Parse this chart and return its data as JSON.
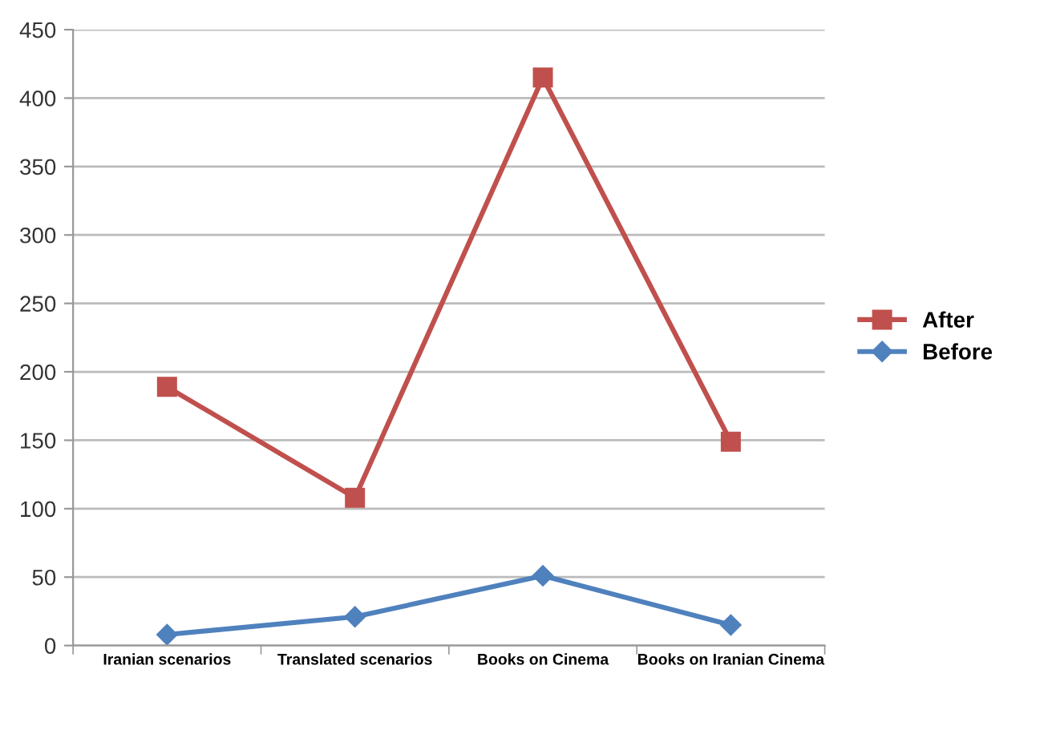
{
  "chart_data": {
    "type": "line",
    "categories": [
      "Iranian scenarios",
      "Translated scenarios",
      "Books on Cinema",
      "Books on Iranian Cinema"
    ],
    "series": [
      {
        "name": "After",
        "color": "#c0504d",
        "marker": "square",
        "values": [
          189,
          108,
          415,
          149
        ]
      },
      {
        "name": "Before",
        "color": "#4f81bd",
        "marker": "diamond",
        "values": [
          8,
          21,
          51,
          15
        ]
      }
    ],
    "ylim": [
      0,
      450
    ],
    "yticks": [
      0,
      50,
      100,
      150,
      200,
      250,
      300,
      350,
      400,
      450
    ],
    "grid": "y",
    "legend": "right",
    "line_style": "solid"
  }
}
